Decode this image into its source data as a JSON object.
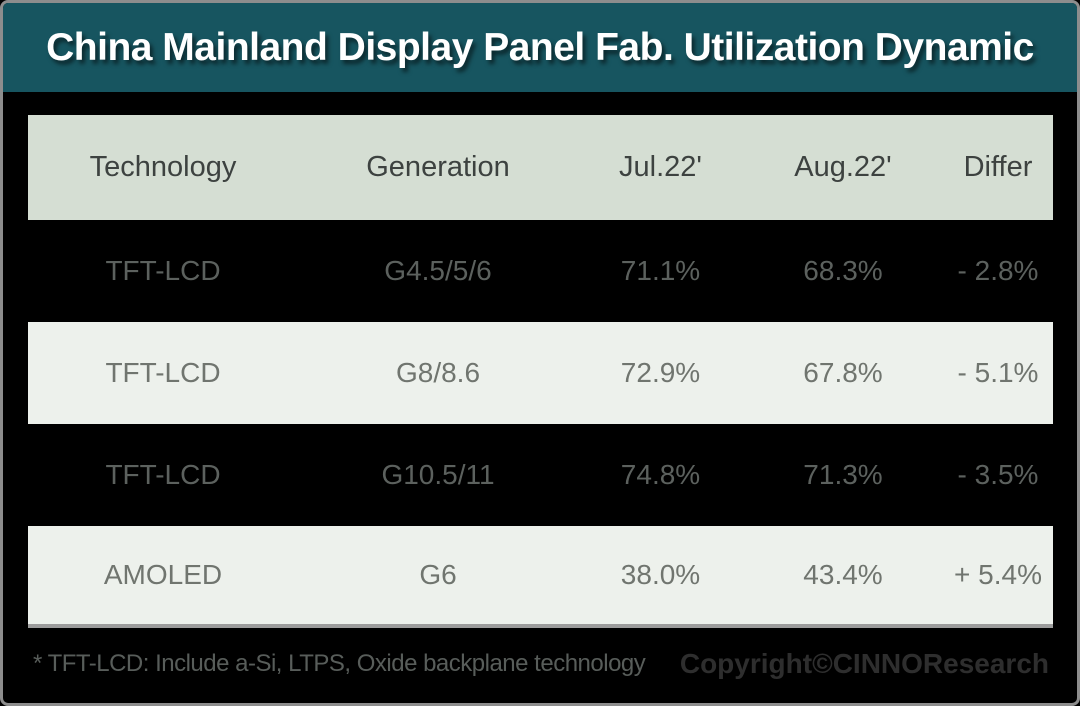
{
  "title": "China Mainland Display Panel Fab. Utilization Dynamic",
  "colors": {
    "title_bg": "#175560",
    "title_text": "#ffffff",
    "table_header_bg": "#d5ded3",
    "row_light_bg": "#edf1ec",
    "canvas_bg": "#000000",
    "frame_border": "#8d8d8d",
    "dark_row_text": "#5c615e",
    "light_row_text": "#70756f"
  },
  "chart_data": {
    "type": "table",
    "title": "China Mainland Display Panel Fab. Utilization Dynamic",
    "columns": [
      "Technology",
      "Generation",
      "Jul.22'",
      "Aug.22'",
      "Differ"
    ],
    "rows": [
      [
        "TFT-LCD",
        "G4.5/5/6",
        "71.1%",
        "68.3%",
        "- 2.8%"
      ],
      [
        "TFT-LCD",
        "G8/8.6",
        "72.9%",
        "67.8%",
        "- 5.1%"
      ],
      [
        "TFT-LCD",
        "G10.5/11",
        "74.8%",
        "71.3%",
        "- 3.5%"
      ],
      [
        "AMOLED",
        "G6",
        "38.0%",
        "43.4%",
        "+ 5.4%"
      ]
    ],
    "numeric": {
      "jul_22": [
        71.1,
        72.9,
        74.8,
        38.0
      ],
      "aug_22": [
        68.3,
        67.8,
        71.3,
        43.4
      ],
      "differ": [
        -2.8,
        -5.1,
        -3.5,
        5.4
      ]
    }
  },
  "footer": {
    "note": "* TFT-LCD: Include a-Si, LTPS, Oxide backplane technology",
    "copyright": "Copyright©CINNOResearch"
  }
}
